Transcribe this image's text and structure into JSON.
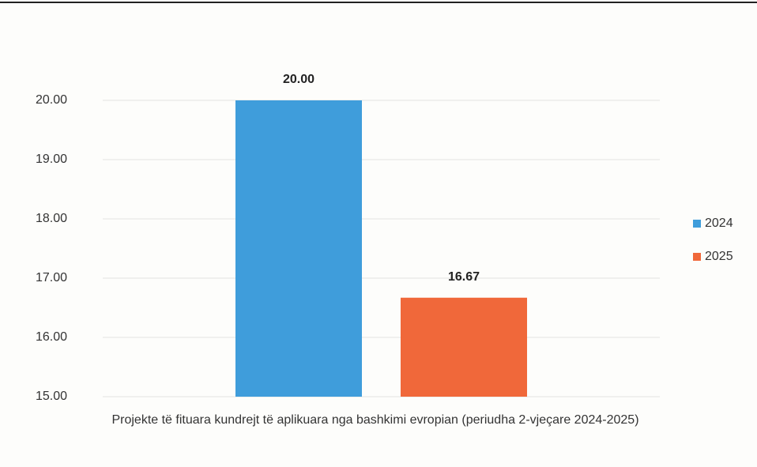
{
  "chart_data": {
    "type": "bar",
    "categories": [
      "Projekte të fituara kundrejt të aplikuara nga bashkimi evropian (periudha 2-vjeçare 2024-2025)"
    ],
    "series": [
      {
        "name": "2024",
        "color": "#3f9ddb",
        "values": [
          20
        ],
        "value_labels": [
          "20.00"
        ]
      },
      {
        "name": "2025",
        "color": "#f0683a",
        "values": [
          16.67
        ],
        "value_labels": [
          "16.67"
        ]
      }
    ],
    "ylim": [
      15,
      20
    ],
    "yticks": [
      {
        "value": 15,
        "label": "15.00"
      },
      {
        "value": 16,
        "label": "16.00"
      },
      {
        "value": 17,
        "label": "17.00"
      },
      {
        "value": 18,
        "label": "18.00"
      },
      {
        "value": 19,
        "label": "19.00"
      },
      {
        "value": 20,
        "label": "20.00"
      }
    ],
    "grid": true,
    "legend": "right"
  }
}
